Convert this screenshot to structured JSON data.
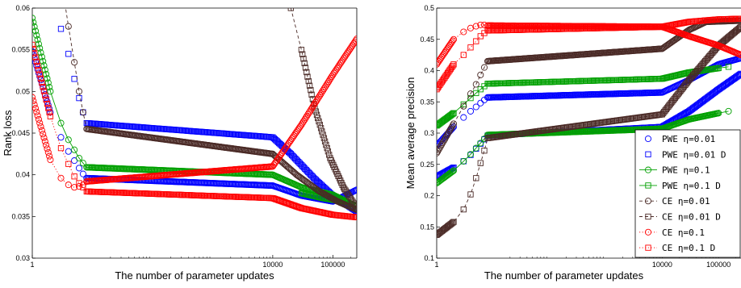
{
  "chart_data": [
    {
      "id": "rank-loss",
      "type": "scatter",
      "xscale": "log",
      "xlim": [
        1,
        250000
      ],
      "ylim": [
        0.03,
        0.06
      ],
      "xticks": [
        1,
        10000,
        100000
      ],
      "xtick_labels": [
        "1",
        "10000",
        "100000"
      ],
      "yticks": [
        0.03,
        0.035,
        0.04,
        0.045,
        0.05,
        0.055,
        0.06
      ],
      "ytick_labels": [
        "0.03",
        "0.035",
        "0.04",
        "0.045",
        "0.05",
        "0.055",
        "0.06"
      ],
      "xlabel": "The number of parameter updates",
      "ylabel": "Rank loss",
      "grid": false,
      "series": [
        {
          "color": "#0000ff",
          "marker": "circle",
          "line": "none",
          "points": [
            [
              1,
              0.0548
            ],
            [
              2,
              0.0475
            ],
            [
              3,
              0.0445
            ],
            [
              4,
              0.0428
            ],
            [
              5,
              0.0417
            ],
            [
              6,
              0.0408
            ],
            [
              7,
              0.0401
            ],
            [
              8,
              0.0396
            ],
            [
              10000,
              0.0387
            ],
            [
              30000,
              0.0375
            ],
            [
              100000,
              0.0368
            ],
            [
              250000,
              0.0382
            ]
          ]
        },
        {
          "color": "#0000ff",
          "marker": "square",
          "line": "none",
          "points": [
            [
              3,
              0.0575
            ],
            [
              4,
              0.0545
            ],
            [
              5,
              0.0515
            ],
            [
              6,
              0.0492
            ],
            [
              7,
              0.0475
            ],
            [
              8,
              0.0462
            ],
            [
              10000,
              0.0445
            ],
            [
              20000,
              0.0425
            ],
            [
              50000,
              0.0395
            ],
            [
              100000,
              0.0375
            ],
            [
              250000,
              0.0356
            ]
          ]
        },
        {
          "color": "#00a000",
          "marker": "circle",
          "line": "solid",
          "points": [
            [
              1,
              0.0588
            ],
            [
              2,
              0.05
            ],
            [
              3,
              0.0462
            ],
            [
              4,
              0.0442
            ],
            [
              5,
              0.043
            ],
            [
              6,
              0.042
            ],
            [
              7,
              0.0414
            ],
            [
              8,
              0.0409
            ],
            [
              10000,
              0.04
            ],
            [
              30000,
              0.0385
            ],
            [
              100000,
              0.0376
            ],
            [
              250000,
              0.0362
            ]
          ]
        },
        {
          "color": "#00a000",
          "marker": "square",
          "line": "none",
          "points": [
            [
              30000,
              0.0378
            ],
            [
              70000,
              0.0372
            ],
            [
              150000,
              0.0368
            ]
          ]
        },
        {
          "color": "#4a2a26",
          "marker": "circle",
          "line": "dashed",
          "points": [
            [
              3.5,
              0.0605
            ],
            [
              4,
              0.0578
            ],
            [
              5,
              0.0535
            ],
            [
              6,
              0.05
            ],
            [
              7,
              0.0475
            ],
            [
              8,
              0.0455
            ],
            [
              10000,
              0.0425
            ],
            [
              25000,
              0.04
            ],
            [
              60000,
              0.038
            ],
            [
              120000,
              0.0368
            ],
            [
              250000,
              0.0358
            ]
          ]
        },
        {
          "color": "#4a2a26",
          "marker": "square",
          "line": "dashed",
          "points": [
            [
              20000,
              0.06
            ],
            [
              30000,
              0.055
            ],
            [
              50000,
              0.048
            ],
            [
              90000,
              0.042
            ],
            [
              150000,
              0.0385
            ],
            [
              250000,
              0.036
            ]
          ]
        },
        {
          "color": "#ff0000",
          "marker": "circle",
          "line": "dotted",
          "points": [
            [
              1,
              0.0493
            ],
            [
              2,
              0.0418
            ],
            [
              3,
              0.0396
            ],
            [
              4,
              0.0388
            ],
            [
              5,
              0.0385
            ],
            [
              6,
              0.0386
            ],
            [
              7,
              0.0388
            ],
            [
              8,
              0.0392
            ],
            [
              10000,
              0.041
            ],
            [
              30000,
              0.046
            ],
            [
              100000,
              0.052
            ],
            [
              250000,
              0.0563
            ]
          ]
        },
        {
          "color": "#ff0000",
          "marker": "square",
          "line": "dotted",
          "points": [
            [
              1,
              0.0556
            ],
            [
              2,
              0.047
            ],
            [
              3,
              0.0432
            ],
            [
              4,
              0.0413
            ],
            [
              5,
              0.0398
            ],
            [
              6,
              0.039
            ],
            [
              7,
              0.0385
            ],
            [
              8,
              0.038
            ],
            [
              10000,
              0.0372
            ],
            [
              30000,
              0.036
            ],
            [
              100000,
              0.0352
            ],
            [
              250000,
              0.0349
            ]
          ]
        }
      ]
    },
    {
      "id": "map",
      "type": "scatter",
      "xscale": "log",
      "xlim": [
        1,
        250000
      ],
      "ylim": [
        0.1,
        0.5
      ],
      "xticks": [
        1,
        10000,
        100000
      ],
      "xtick_labels": [
        "1",
        "10000",
        "100000"
      ],
      "yticks": [
        0.1,
        0.15,
        0.2,
        0.25,
        0.3,
        0.35,
        0.4,
        0.45,
        0.5
      ],
      "ytick_labels": [
        "0.1",
        "0.15",
        "0.2",
        "0.25",
        "0.3",
        "0.35",
        "0.4",
        "0.45",
        "0.5"
      ],
      "xlabel": "The number of parameter updates",
      "ylabel": "Mean average precision",
      "grid": false,
      "legend": "right",
      "legend_labels": [
        "PWE  η=0.01",
        "PWE  η=0.01  D",
        "PWE  η=0.1",
        "PWE  η=0.1  D",
        "CE   η=0.01",
        "CE   η=0.01  D",
        "CE   η=0.1",
        "CE   η=0.1  D"
      ],
      "series": [
        {
          "color": "#0000ff",
          "marker": "circle",
          "line": "none",
          "points": [
            [
              1,
              0.28
            ],
            [
              2,
              0.31
            ],
            [
              3,
              0.325
            ],
            [
              4,
              0.335
            ],
            [
              5,
              0.342
            ],
            [
              6,
              0.348
            ],
            [
              7,
              0.353
            ],
            [
              8,
              0.357
            ],
            [
              10000,
              0.365
            ],
            [
              30000,
              0.385
            ],
            [
              100000,
              0.41
            ],
            [
              250000,
              0.42
            ]
          ]
        },
        {
          "color": "#0000ff",
          "marker": "square",
          "line": "none",
          "points": [
            [
              1,
              0.23
            ],
            [
              2,
              0.245
            ],
            [
              3,
              0.255
            ],
            [
              4,
              0.265
            ],
            [
              5,
              0.275
            ],
            [
              6,
              0.283
            ],
            [
              7,
              0.29
            ],
            [
              8,
              0.296
            ],
            [
              10000,
              0.31
            ],
            [
              30000,
              0.335
            ],
            [
              100000,
              0.37
            ],
            [
              250000,
              0.395
            ]
          ]
        },
        {
          "color": "#00a000",
          "marker": "circle",
          "line": "solid",
          "points": [
            [
              1,
              0.22
            ],
            [
              2,
              0.24
            ],
            [
              3,
              0.255
            ],
            [
              4,
              0.266
            ],
            [
              5,
              0.276
            ],
            [
              6,
              0.284
            ],
            [
              7,
              0.291
            ],
            [
              8,
              0.297
            ],
            [
              10000,
              0.307
            ],
            [
              30000,
              0.322
            ],
            [
              100000,
              0.332
            ],
            [
              150000,
              0.335
            ]
          ]
        },
        {
          "color": "#00a000",
          "marker": "square",
          "line": "solid",
          "points": [
            [
              1,
              0.312
            ],
            [
              2,
              0.332
            ],
            [
              3,
              0.346
            ],
            [
              4,
              0.356
            ],
            [
              5,
              0.364
            ],
            [
              6,
              0.37
            ],
            [
              7,
              0.375
            ],
            [
              8,
              0.379
            ],
            [
              10000,
              0.387
            ],
            [
              30000,
              0.397
            ],
            [
              100000,
              0.404
            ],
            [
              150000,
              0.406
            ]
          ]
        },
        {
          "color": "#4a2a26",
          "marker": "circle",
          "line": "dashed",
          "points": [
            [
              1,
              0.268
            ],
            [
              2,
              0.315
            ],
            [
              3,
              0.343
            ],
            [
              4,
              0.363
            ],
            [
              5,
              0.378
            ],
            [
              6,
              0.393
            ],
            [
              7,
              0.405
            ],
            [
              8,
              0.415
            ],
            [
              10000,
              0.435
            ],
            [
              30000,
              0.465
            ],
            [
              60000,
              0.478
            ],
            [
              250000,
              0.48
            ]
          ]
        },
        {
          "color": "#4a2a26",
          "marker": "square",
          "line": "dashed",
          "points": [
            [
              1,
              0.137
            ],
            [
              2,
              0.158
            ],
            [
              3,
              0.178
            ],
            [
              4,
              0.202
            ],
            [
              5,
              0.228
            ],
            [
              6,
              0.252
            ],
            [
              7,
              0.272
            ],
            [
              8,
              0.292
            ],
            [
              10000,
              0.33
            ],
            [
              30000,
              0.385
            ],
            [
              100000,
              0.44
            ],
            [
              250000,
              0.47
            ]
          ]
        },
        {
          "color": "#ff0000",
          "marker": "circle",
          "line": "dotted",
          "points": [
            [
              1,
              0.41
            ],
            [
              2,
              0.45
            ],
            [
              3,
              0.462
            ],
            [
              4,
              0.468
            ],
            [
              5,
              0.471
            ],
            [
              6,
              0.473
            ],
            [
              7,
              0.473
            ],
            [
              8,
              0.472
            ],
            [
              10000,
              0.47
            ],
            [
              30000,
              0.455
            ],
            [
              100000,
              0.44
            ],
            [
              250000,
              0.425
            ]
          ]
        },
        {
          "color": "#ff0000",
          "marker": "square",
          "line": "dotted",
          "points": [
            [
              1,
              0.37
            ],
            [
              2,
              0.41
            ],
            [
              3,
              0.425
            ],
            [
              4,
              0.437
            ],
            [
              5,
              0.447
            ],
            [
              6,
              0.455
            ],
            [
              7,
              0.46
            ],
            [
              8,
              0.464
            ],
            [
              10000,
              0.47
            ],
            [
              30000,
              0.478
            ],
            [
              100000,
              0.482
            ],
            [
              250000,
              0.483
            ]
          ]
        }
      ]
    }
  ]
}
